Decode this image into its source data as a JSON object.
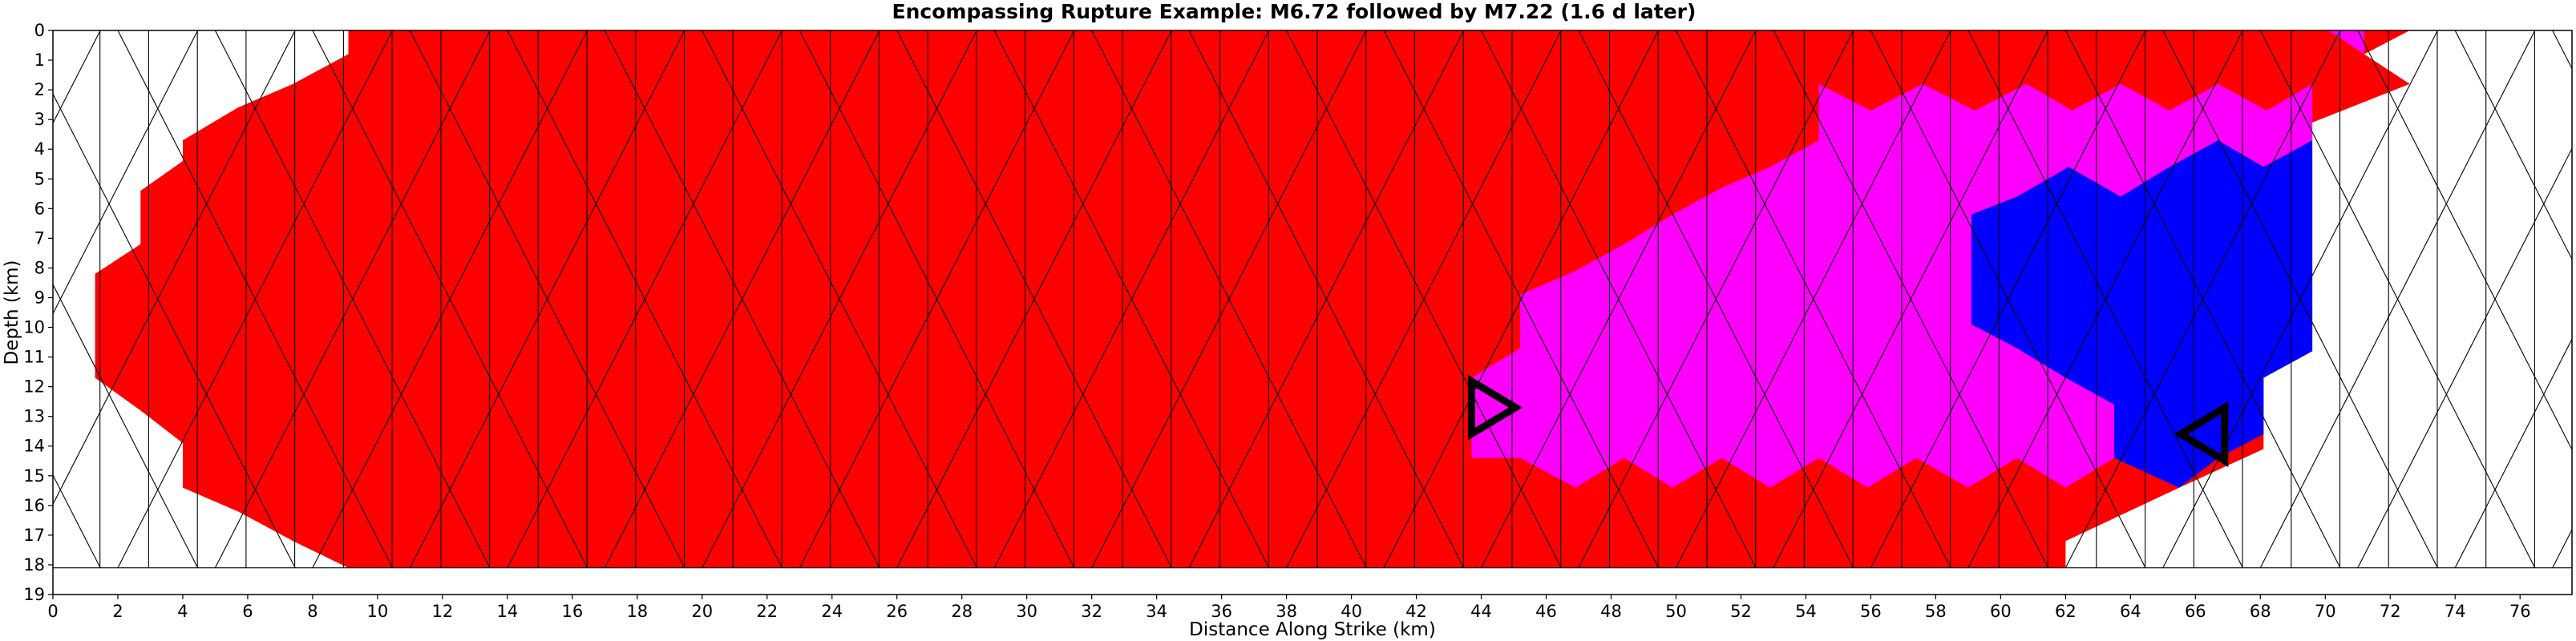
{
  "chart_data": {
    "type": "heatmap",
    "title": "Encompassing Rupture Example: M6.72 followed by M7.22 (1.6 d later)",
    "xlabel": "Distance Along Strike (km)",
    "ylabel": "Depth (km)",
    "xlim": [
      0,
      77.6
    ],
    "ylim": [
      19,
      0
    ],
    "x_ticks": [
      "0",
      "2",
      "4",
      "6",
      "8",
      "10",
      "12",
      "14",
      "16",
      "18",
      "20",
      "22",
      "24",
      "26",
      "28",
      "30",
      "32",
      "34",
      "36",
      "38",
      "40",
      "42",
      "44",
      "46",
      "48",
      "50",
      "52",
      "54",
      "56",
      "58",
      "60",
      "62",
      "64",
      "66",
      "68",
      "70",
      "72",
      "74",
      "76"
    ],
    "y_ticks": [
      "0",
      "1",
      "2",
      "3",
      "4",
      "5",
      "6",
      "7",
      "8",
      "9",
      "10",
      "11",
      "12",
      "13",
      "14",
      "15",
      "16",
      "17",
      "18",
      "19"
    ],
    "grid": "triangular fault mesh",
    "colors": {
      "inactive": "#ffffff",
      "first_event": "#ff0000",
      "overlap": "#ff00ff",
      "second_event": "#0000ff",
      "mesh_edge_active": "#000000",
      "mesh_edge_inactive": "#8a8a8a",
      "hypocenter_marker": "#000000"
    },
    "regions": [
      {
        "name": "red",
        "color": "#ff0000",
        "polygon": [
          [
            9.1,
            0
          ],
          [
            70.1,
            0
          ],
          [
            72.6,
            0
          ],
          [
            71.2,
            0.8
          ],
          [
            72.6,
            1.8
          ],
          [
            69.6,
            3.1
          ],
          [
            69.6,
            5.2
          ],
          [
            69.6,
            7.8
          ],
          [
            69.6,
            10.8
          ],
          [
            68.1,
            11.7
          ],
          [
            68.1,
            14.1
          ],
          [
            65.5,
            15.4
          ],
          [
            62,
            17.2
          ],
          [
            62,
            18.1
          ],
          [
            9.1,
            18.1
          ],
          [
            7.4,
            17.2
          ],
          [
            5.7,
            16.2
          ],
          [
            4,
            15.4
          ],
          [
            4,
            13.9
          ],
          [
            2.7,
            12.8
          ],
          [
            1.3,
            11.7
          ],
          [
            1.3,
            9.9
          ],
          [
            1.3,
            8.2
          ],
          [
            2.7,
            7.2
          ],
          [
            2.7,
            5.4
          ],
          [
            4,
            4.4
          ],
          [
            4,
            3.7
          ],
          [
            5.7,
            2.6
          ],
          [
            7.4,
            1.8
          ],
          [
            9.1,
            0.8
          ]
        ]
      },
      {
        "name": "magenta",
        "color": "#ff00ff",
        "polygon": [
          [
            43.7,
            11.7
          ],
          [
            45.2,
            10.7
          ],
          [
            45.2,
            8.9
          ],
          [
            46.9,
            8.1
          ],
          [
            48.4,
            7.2
          ],
          [
            49.9,
            6.2
          ],
          [
            51.4,
            5.3
          ],
          [
            52.9,
            4.6
          ],
          [
            54.4,
            3.7
          ],
          [
            54.4,
            1.8
          ],
          [
            56,
            2.7
          ],
          [
            57.6,
            1.8
          ],
          [
            59.2,
            2.7
          ],
          [
            60.8,
            1.8
          ],
          [
            62.2,
            2.7
          ],
          [
            63.7,
            1.8
          ],
          [
            65.2,
            2.7
          ],
          [
            66.7,
            1.8
          ],
          [
            68.2,
            2.7
          ],
          [
            69.6,
            1.8
          ],
          [
            69.6,
            3.7
          ],
          [
            68.1,
            4.6
          ],
          [
            66.7,
            3.7
          ],
          [
            65.2,
            4.6
          ],
          [
            63.7,
            5.6
          ],
          [
            62.1,
            4.6
          ],
          [
            60.5,
            5.6
          ],
          [
            59.1,
            6.2
          ],
          [
            59.1,
            9.9
          ],
          [
            60.5,
            10.7
          ],
          [
            62,
            11.7
          ],
          [
            63.5,
            12.6
          ],
          [
            63.5,
            14.4
          ],
          [
            62,
            15.4
          ],
          [
            60.5,
            14.4
          ],
          [
            59,
            15.4
          ],
          [
            57.4,
            14.4
          ],
          [
            55.9,
            15.4
          ],
          [
            54.4,
            14.4
          ],
          [
            52.9,
            15.4
          ],
          [
            51.4,
            14.4
          ],
          [
            49.9,
            15.4
          ],
          [
            48.4,
            14.4
          ],
          [
            46.9,
            15.4
          ],
          [
            45.2,
            14.4
          ],
          [
            43.7,
            14.4
          ]
        ]
      },
      {
        "name": "magenta-top",
        "color": "#ff00ff",
        "polygon": [
          [
            70.1,
            0
          ],
          [
            71.2,
            0
          ],
          [
            71.2,
            0.8
          ]
        ]
      },
      {
        "name": "blue",
        "color": "#0000ff",
        "polygon": [
          [
            59.1,
            6.2
          ],
          [
            60.5,
            5.6
          ],
          [
            62.1,
            4.6
          ],
          [
            63.7,
            5.6
          ],
          [
            65.2,
            4.6
          ],
          [
            66.7,
            3.7
          ],
          [
            68.1,
            4.6
          ],
          [
            69.6,
            3.7
          ],
          [
            69.6,
            10.8
          ],
          [
            68.1,
            11.7
          ],
          [
            68.1,
            13.6
          ],
          [
            66.7,
            14.4
          ],
          [
            65.5,
            15.4
          ],
          [
            63.5,
            14.4
          ],
          [
            63.5,
            12.6
          ],
          [
            62,
            11.7
          ],
          [
            60.5,
            10.7
          ],
          [
            59.1,
            9.9
          ]
        ]
      }
    ],
    "markers": [
      {
        "label": "first_hypocenter",
        "shape": "triangle-right",
        "x": 43.7,
        "y": 12.7
      },
      {
        "label": "second_hypocenter",
        "shape": "triangle-left",
        "x": 66.9,
        "y": 13.6
      }
    ]
  }
}
